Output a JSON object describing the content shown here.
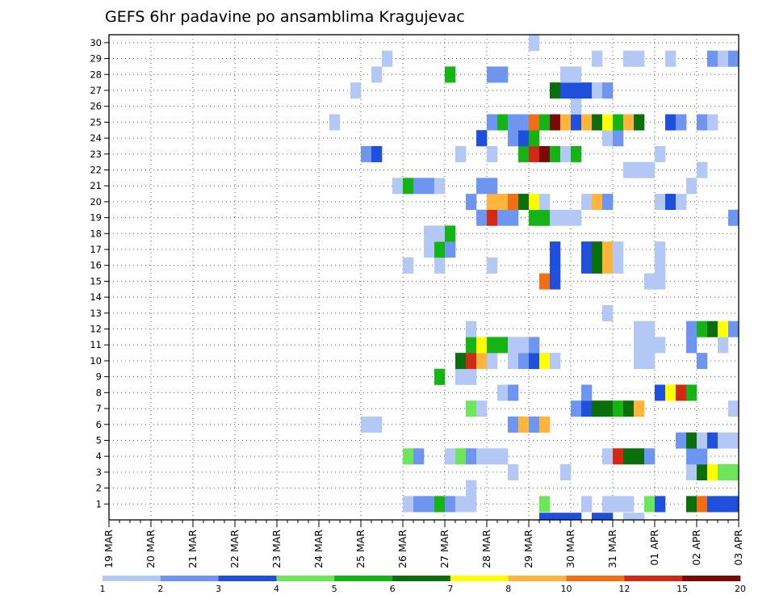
{
  "chart_data": {
    "type": "heatmap",
    "title": "GEFS 6hr padavine po ansamblima Kragujevac",
    "y_member_labels": [
      "1",
      "2",
      "3",
      "4",
      "5",
      "6",
      "7",
      "8",
      "9",
      "10",
      "11",
      "12",
      "13",
      "14",
      "15",
      "16",
      "17",
      "18",
      "19",
      "20",
      "21",
      "22",
      "23",
      "24",
      "25",
      "26",
      "27",
      "28",
      "29",
      "30"
    ],
    "x_date_labels": [
      "19 MAR",
      "20 MAR",
      "21 MAR",
      "22 MAR",
      "23 MAR",
      "24 MAR",
      "25 MAR",
      "26 MAR",
      "27 MAR",
      "28 MAR",
      "29 MAR",
      "30 MAR",
      "31 MAR",
      "01 APR",
      "02 APR",
      "03 APR"
    ],
    "x_step": "6h",
    "x_range_steps": [
      0,
      60
    ],
    "grid": true,
    "legend": {
      "position": "bottom",
      "colors": [
        "#b4c8f5",
        "#6e96f0",
        "#1e50dc",
        "#6ee65a",
        "#14b414",
        "#0a6e0a",
        "#ffff00",
        "#ffb43c",
        "#f06e14",
        "#d22814",
        "#780a0a"
      ],
      "tick_labels": [
        "1",
        "2",
        "3",
        "4",
        "5",
        "6",
        "7",
        "8",
        "10",
        "12",
        "15",
        "20"
      ]
    },
    "cells": [
      [
        1,
        28,
        1
      ],
      [
        1,
        29,
        2
      ],
      [
        1,
        30,
        2
      ],
      [
        1,
        31,
        5
      ],
      [
        1,
        32,
        2
      ],
      [
        1,
        33,
        1
      ],
      [
        1,
        34,
        1
      ],
      [
        1,
        41,
        4
      ],
      [
        1,
        45,
        1
      ],
      [
        1,
        47,
        1
      ],
      [
        1,
        48,
        1
      ],
      [
        1,
        49,
        1
      ],
      [
        1,
        51,
        4
      ],
      [
        1,
        52,
        3
      ],
      [
        1,
        55,
        6
      ],
      [
        1,
        56,
        9
      ],
      [
        1,
        57,
        3
      ],
      [
        1,
        58,
        3
      ],
      [
        1,
        59,
        3
      ],
      [
        1,
        60,
        4
      ],
      [
        2,
        34,
        1
      ],
      [
        3,
        38,
        1
      ],
      [
        3,
        43,
        1
      ],
      [
        3,
        55,
        1
      ],
      [
        3,
        56,
        6
      ],
      [
        3,
        57,
        7
      ],
      [
        3,
        58,
        4
      ],
      [
        3,
        59,
        4
      ],
      [
        3,
        60,
        5
      ],
      [
        4,
        28,
        4
      ],
      [
        4,
        29,
        2
      ],
      [
        4,
        32,
        1
      ],
      [
        4,
        33,
        4
      ],
      [
        4,
        34,
        2
      ],
      [
        4,
        35,
        1
      ],
      [
        4,
        36,
        1
      ],
      [
        4,
        37,
        1
      ],
      [
        4,
        47,
        1
      ],
      [
        4,
        48,
        10
      ],
      [
        4,
        49,
        6
      ],
      [
        4,
        50,
        6
      ],
      [
        4,
        51,
        2
      ],
      [
        4,
        55,
        2
      ],
      [
        4,
        56,
        2
      ],
      [
        5,
        54,
        2
      ],
      [
        5,
        55,
        6
      ],
      [
        5,
        56,
        1
      ],
      [
        5,
        57,
        3
      ],
      [
        5,
        58,
        1
      ],
      [
        5,
        59,
        1
      ],
      [
        5,
        60,
        6
      ],
      [
        6,
        24,
        1
      ],
      [
        6,
        25,
        1
      ],
      [
        6,
        38,
        2
      ],
      [
        6,
        39,
        8
      ],
      [
        6,
        40,
        2
      ],
      [
        6,
        41,
        8
      ],
      [
        6,
        60,
        5
      ],
      [
        7,
        34,
        4
      ],
      [
        7,
        35,
        1
      ],
      [
        7,
        44,
        2
      ],
      [
        7,
        45,
        3
      ],
      [
        7,
        46,
        6
      ],
      [
        7,
        47,
        6
      ],
      [
        7,
        48,
        5
      ],
      [
        7,
        49,
        6
      ],
      [
        7,
        50,
        8
      ],
      [
        7,
        59,
        1
      ],
      [
        7,
        60,
        2
      ],
      [
        8,
        37,
        1
      ],
      [
        8,
        38,
        2
      ],
      [
        8,
        45,
        2
      ],
      [
        8,
        52,
        3
      ],
      [
        8,
        53,
        7
      ],
      [
        8,
        54,
        10
      ],
      [
        8,
        55,
        5
      ],
      [
        9,
        31,
        5
      ],
      [
        9,
        33,
        1
      ],
      [
        9,
        34,
        1
      ],
      [
        10,
        33,
        6
      ],
      [
        10,
        34,
        10
      ],
      [
        10,
        35,
        8
      ],
      [
        10,
        36,
        1
      ],
      [
        10,
        38,
        1
      ],
      [
        10,
        39,
        2
      ],
      [
        10,
        40,
        3
      ],
      [
        10,
        41,
        7
      ],
      [
        10,
        42,
        1
      ],
      [
        10,
        50,
        1
      ],
      [
        10,
        51,
        1
      ],
      [
        10,
        56,
        2
      ],
      [
        11,
        34,
        5
      ],
      [
        11,
        35,
        7
      ],
      [
        11,
        36,
        5
      ],
      [
        11,
        37,
        5
      ],
      [
        11,
        38,
        1
      ],
      [
        11,
        39,
        1
      ],
      [
        11,
        40,
        2
      ],
      [
        11,
        50,
        1
      ],
      [
        11,
        51,
        1
      ],
      [
        11,
        52,
        1
      ],
      [
        11,
        55,
        2
      ],
      [
        11,
        58,
        1
      ],
      [
        12,
        34,
        1
      ],
      [
        12,
        50,
        1
      ],
      [
        12,
        51,
        1
      ],
      [
        12,
        55,
        2
      ],
      [
        12,
        56,
        5
      ],
      [
        12,
        57,
        6
      ],
      [
        12,
        58,
        7
      ],
      [
        12,
        59,
        2
      ],
      [
        13,
        47,
        1
      ],
      [
        13,
        60,
        1
      ],
      [
        15,
        41,
        9
      ],
      [
        15,
        42,
        3
      ],
      [
        15,
        51,
        1
      ],
      [
        15,
        52,
        1
      ],
      [
        16,
        28,
        1
      ],
      [
        16,
        31,
        1
      ],
      [
        16,
        36,
        1
      ],
      [
        16,
        42,
        3
      ],
      [
        16,
        45,
        3
      ],
      [
        16,
        46,
        6
      ],
      [
        16,
        47,
        8
      ],
      [
        16,
        48,
        1
      ],
      [
        16,
        52,
        1
      ],
      [
        17,
        30,
        1
      ],
      [
        17,
        31,
        5
      ],
      [
        17,
        32,
        2
      ],
      [
        17,
        42,
        3
      ],
      [
        17,
        45,
        3
      ],
      [
        17,
        46,
        6
      ],
      [
        17,
        47,
        8
      ],
      [
        17,
        48,
        1
      ],
      [
        17,
        52,
        1
      ],
      [
        18,
        30,
        1
      ],
      [
        18,
        31,
        1
      ],
      [
        18,
        32,
        5
      ],
      [
        19,
        35,
        2
      ],
      [
        19,
        36,
        10
      ],
      [
        19,
        37,
        2
      ],
      [
        19,
        38,
        2
      ],
      [
        19,
        40,
        5
      ],
      [
        19,
        41,
        5
      ],
      [
        19,
        42,
        1
      ],
      [
        19,
        43,
        1
      ],
      [
        19,
        44,
        1
      ],
      [
        19,
        59,
        2
      ],
      [
        19,
        60,
        2
      ],
      [
        19,
        61,
        3
      ],
      [
        20,
        34,
        2
      ],
      [
        20,
        36,
        8
      ],
      [
        20,
        37,
        8
      ],
      [
        20,
        38,
        9
      ],
      [
        20,
        39,
        6
      ],
      [
        20,
        40,
        7
      ],
      [
        20,
        41,
        1
      ],
      [
        20,
        45,
        1
      ],
      [
        20,
        46,
        8
      ],
      [
        20,
        47,
        2
      ],
      [
        20,
        52,
        1
      ],
      [
        20,
        53,
        3
      ],
      [
        20,
        54,
        1
      ],
      [
        21,
        27,
        1
      ],
      [
        21,
        28,
        5
      ],
      [
        21,
        29,
        2
      ],
      [
        21,
        30,
        2
      ],
      [
        21,
        31,
        1
      ],
      [
        21,
        35,
        2
      ],
      [
        21,
        36,
        2
      ],
      [
        21,
        55,
        1
      ],
      [
        22,
        49,
        1
      ],
      [
        22,
        50,
        1
      ],
      [
        22,
        51,
        1
      ],
      [
        22,
        56,
        1
      ],
      [
        23,
        24,
        2
      ],
      [
        23,
        25,
        3
      ],
      [
        23,
        33,
        1
      ],
      [
        23,
        36,
        1
      ],
      [
        23,
        39,
        5
      ],
      [
        23,
        40,
        10
      ],
      [
        23,
        41,
        11
      ],
      [
        23,
        42,
        5
      ],
      [
        23,
        43,
        1
      ],
      [
        23,
        44,
        5
      ],
      [
        23,
        52,
        1
      ],
      [
        24,
        35,
        3
      ],
      [
        24,
        38,
        2
      ],
      [
        24,
        39,
        3
      ],
      [
        24,
        40,
        5
      ],
      [
        24,
        47,
        1
      ],
      [
        24,
        48,
        2
      ],
      [
        25,
        21,
        1
      ],
      [
        25,
        36,
        2
      ],
      [
        25,
        37,
        5
      ],
      [
        25,
        38,
        2
      ],
      [
        25,
        39,
        2
      ],
      [
        25,
        40,
        9
      ],
      [
        25,
        41,
        5
      ],
      [
        25,
        42,
        11
      ],
      [
        25,
        43,
        8
      ],
      [
        25,
        44,
        3
      ],
      [
        25,
        45,
        8
      ],
      [
        25,
        46,
        6
      ],
      [
        25,
        47,
        7
      ],
      [
        25,
        48,
        5
      ],
      [
        25,
        49,
        8
      ],
      [
        25,
        50,
        6
      ],
      [
        25,
        53,
        3
      ],
      [
        25,
        54,
        2
      ],
      [
        25,
        56,
        2
      ],
      [
        25,
        57,
        1
      ],
      [
        26,
        44,
        1
      ],
      [
        27,
        23,
        1
      ],
      [
        27,
        42,
        6
      ],
      [
        27,
        43,
        3
      ],
      [
        27,
        44,
        3
      ],
      [
        27,
        45,
        3
      ],
      [
        27,
        46,
        1
      ],
      [
        27,
        47,
        2
      ],
      [
        27,
        60,
        4
      ],
      [
        28,
        25,
        1
      ],
      [
        28,
        32,
        5
      ],
      [
        28,
        36,
        2
      ],
      [
        28,
        37,
        2
      ],
      [
        28,
        43,
        1
      ],
      [
        28,
        44,
        1
      ],
      [
        29,
        26,
        1
      ],
      [
        29,
        46,
        1
      ],
      [
        29,
        49,
        1
      ],
      [
        29,
        50,
        1
      ],
      [
        29,
        53,
        1
      ],
      [
        29,
        57,
        2
      ],
      [
        29,
        58,
        1
      ],
      [
        29,
        59,
        2
      ],
      [
        30,
        40,
        1
      ]
    ],
    "extra_row_below_axis": [
      [
        41,
        3
      ],
      [
        42,
        3
      ],
      [
        43,
        3
      ],
      [
        44,
        3
      ],
      [
        46,
        3
      ],
      [
        47,
        3
      ],
      [
        49,
        1
      ],
      [
        50,
        1
      ]
    ]
  }
}
